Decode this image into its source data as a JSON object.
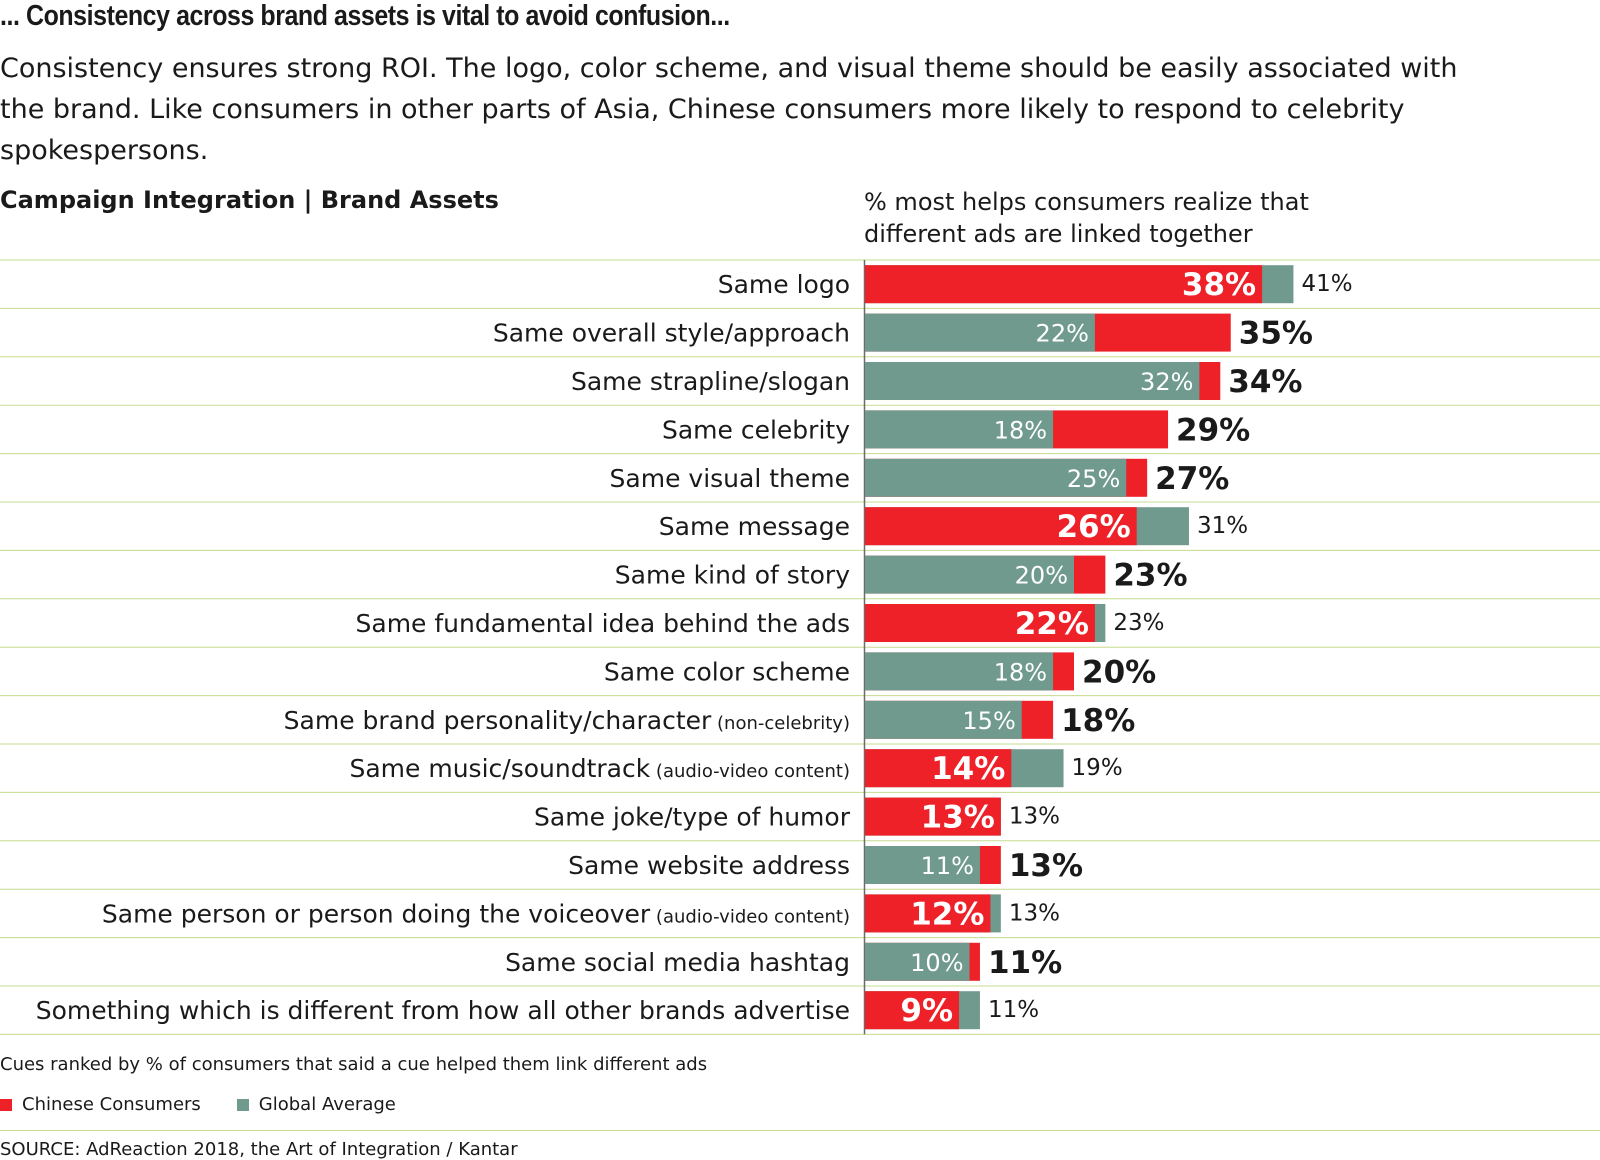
{
  "header": {
    "kicker": "... Consistency across brand assets is vital to avoid confusion...",
    "intro": "Consistency ensures strong ROI. The logo, color scheme, and visual theme should be easily associated with the brand. Like consumers in other parts of Asia, Chinese consumers more likely to respond to celebrity spokespersons."
  },
  "chart_data": {
    "type": "bar",
    "orientation": "horizontal",
    "title": "Campaign Integration | Brand Assets",
    "measure_label": "% most helps consumers realize that different ads are linked together",
    "value_suffix": "%",
    "xlim": [
      0,
      41
    ],
    "categories": [
      {
        "label": "Same logo",
        "note": ""
      },
      {
        "label": "Same overall style/approach",
        "note": ""
      },
      {
        "label": "Same strapline/slogan",
        "note": ""
      },
      {
        "label": "Same celebrity",
        "note": ""
      },
      {
        "label": "Same visual theme",
        "note": ""
      },
      {
        "label": "Same message",
        "note": ""
      },
      {
        "label": "Same kind of story",
        "note": ""
      },
      {
        "label": "Same fundamental idea behind the ads",
        "note": ""
      },
      {
        "label": "Same color scheme",
        "note": ""
      },
      {
        "label": "Same brand personality/character",
        "note": "(non-celebrity)"
      },
      {
        "label": "Same music/soundtrack",
        "note": "(audio-video content)"
      },
      {
        "label": "Same joke/type of humor",
        "note": ""
      },
      {
        "label": "Same website address",
        "note": ""
      },
      {
        "label": "Same person or person doing the voiceover",
        "note": "(audio-video content)"
      },
      {
        "label": "Same social media hashtag",
        "note": ""
      },
      {
        "label": "Something which is different from how all other brands advertise",
        "note": ""
      }
    ],
    "series": [
      {
        "name": "Chinese Consumers",
        "color": "#ee2028",
        "values": [
          38,
          35,
          34,
          29,
          27,
          26,
          23,
          22,
          20,
          18,
          14,
          13,
          13,
          12,
          11,
          9
        ]
      },
      {
        "name": "Global Average",
        "color": "#6f9a8d",
        "values": [
          41,
          22,
          32,
          18,
          25,
          31,
          20,
          23,
          18,
          15,
          19,
          13,
          11,
          13,
          10,
          11
        ]
      }
    ],
    "note": "Cues ranked by % of consumers that said a cue helped them link different ads",
    "source": "SOURCE: AdReaction 2018, the Art of Integration / Kantar",
    "colors": {
      "rule": "#c5dc8e",
      "axis": "#6b6b6b",
      "dark_text": "#1a1a1a",
      "white_text": "#ffffff"
    }
  }
}
